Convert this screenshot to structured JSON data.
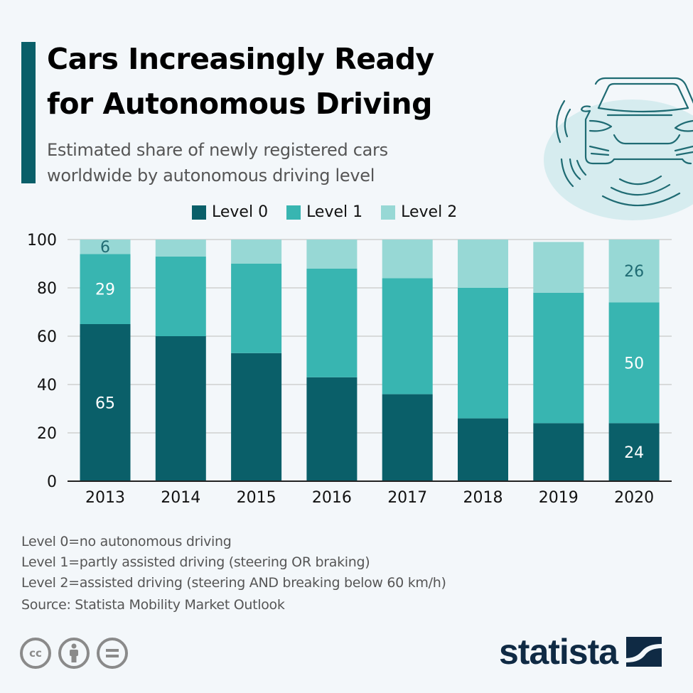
{
  "header": {
    "title_line1": "Cars Increasingly Ready",
    "title_line2": "for Autonomous Driving",
    "subtitle_line1": "Estimated share of newly registered cars",
    "subtitle_line2": "worldwide by autonomous driving level"
  },
  "colors": {
    "accent": "#0a5f69",
    "level0": "#0a5f69",
    "level1": "#38b5b1",
    "level2": "#97d8d5",
    "logo": "#0f2a44"
  },
  "chart_data": {
    "type": "bar",
    "stacked": true,
    "title": "Cars Increasingly Ready for Autonomous Driving",
    "subtitle": "Estimated share of newly registered cars worldwide by autonomous driving level",
    "xlabel": "",
    "ylabel": "",
    "ylim": [
      0,
      100
    ],
    "yticks": [
      0,
      20,
      40,
      60,
      80,
      100
    ],
    "grid": true,
    "legend_position": "top-center",
    "categories": [
      "2013",
      "2014",
      "2015",
      "2016",
      "2017",
      "2018",
      "2019",
      "2020"
    ],
    "series": [
      {
        "name": "Level 0",
        "color": "#0a5f69",
        "values": [
          65,
          60,
          53,
          43,
          36,
          26,
          24,
          24
        ]
      },
      {
        "name": "Level 1",
        "color": "#38b5b1",
        "values": [
          29,
          33,
          37,
          45,
          48,
          54,
          54,
          50
        ]
      },
      {
        "name": "Level 2",
        "color": "#97d8d5",
        "values": [
          6,
          7,
          10,
          12,
          16,
          20,
          21,
          26
        ]
      }
    ],
    "data_labels": [
      {
        "category": "2013",
        "series": "Level 0",
        "text": "65"
      },
      {
        "category": "2013",
        "series": "Level 1",
        "text": "29"
      },
      {
        "category": "2013",
        "series": "Level 2",
        "text": "6"
      },
      {
        "category": "2020",
        "series": "Level 0",
        "text": "24"
      },
      {
        "category": "2020",
        "series": "Level 1",
        "text": "50"
      },
      {
        "category": "2020",
        "series": "Level 2",
        "text": "26"
      }
    ]
  },
  "legend": {
    "items": [
      "Level 0",
      "Level 1",
      "Level 2"
    ]
  },
  "notes": {
    "line1": "Level 0=no autonomous driving",
    "line2": "Level 1=partly assisted driving (steering OR braking)",
    "line3": "Level 2=assisted driving (steering AND breaking below 60 km/h)",
    "source": "Source: Statista Mobility Market Outlook"
  },
  "footer": {
    "cc_icons": [
      "cc-icon",
      "attribution-icon",
      "no-derivatives-icon"
    ],
    "cc_text": "cc",
    "logo_text": "statista"
  }
}
